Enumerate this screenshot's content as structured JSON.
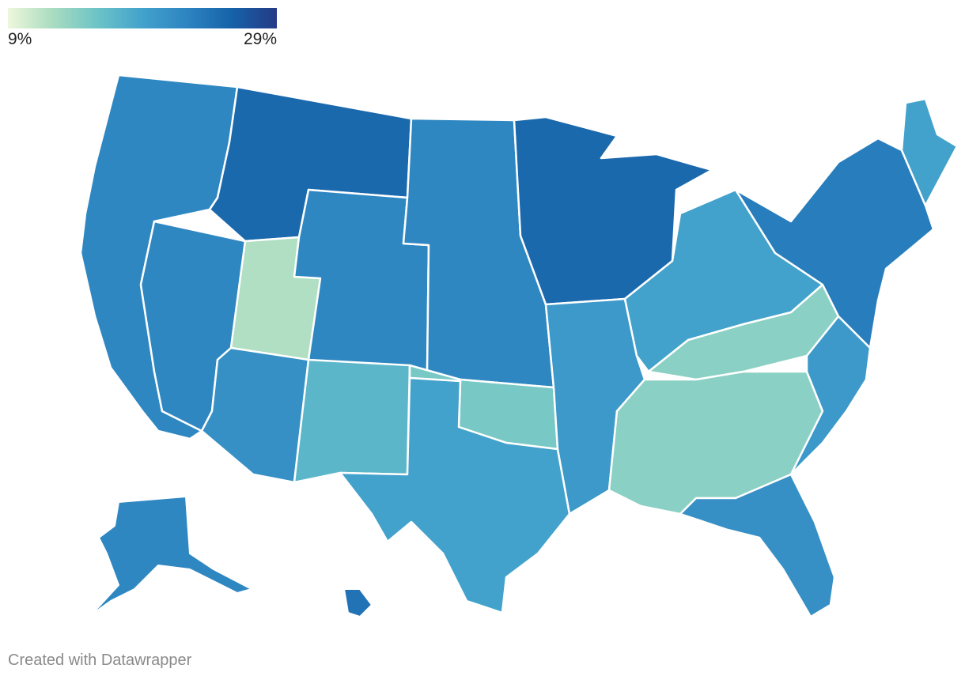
{
  "legend": {
    "min_label": "9%",
    "max_label": "29%",
    "min_value": 9,
    "max_value": 29,
    "colors": [
      "#eef7dc",
      "#a9dcc0",
      "#6cc3c7",
      "#43a2cc",
      "#2d84c1",
      "#1662a8",
      "#253a86"
    ]
  },
  "map": {
    "regions": [
      {
        "name": "west-coast",
        "value": 22
      },
      {
        "name": "nevada",
        "value": 22
      },
      {
        "name": "idaho-montana",
        "value": 25
      },
      {
        "name": "utah",
        "value": 12
      },
      {
        "name": "wyoming-colorado",
        "value": 22
      },
      {
        "name": "arizona",
        "value": 21
      },
      {
        "name": "new-mexico",
        "value": 17
      },
      {
        "name": "great-plains",
        "value": 22
      },
      {
        "name": "oklahoma",
        "value": 15
      },
      {
        "name": "texas",
        "value": 19
      },
      {
        "name": "upper-midwest",
        "value": 25
      },
      {
        "name": "missouri-arkansas",
        "value": 20
      },
      {
        "name": "ohio-valley",
        "value": 19
      },
      {
        "name": "kentucky-appalachia",
        "value": 14
      },
      {
        "name": "deep-south",
        "value": 14
      },
      {
        "name": "southeast-atlantic",
        "value": 20
      },
      {
        "name": "florida",
        "value": 21
      },
      {
        "name": "northeast",
        "value": 23
      },
      {
        "name": "maine",
        "value": 19
      },
      {
        "name": "alaska",
        "value": 22
      },
      {
        "name": "hawaii",
        "value": 24
      }
    ]
  },
  "credit": "Created with Datawrapper"
}
